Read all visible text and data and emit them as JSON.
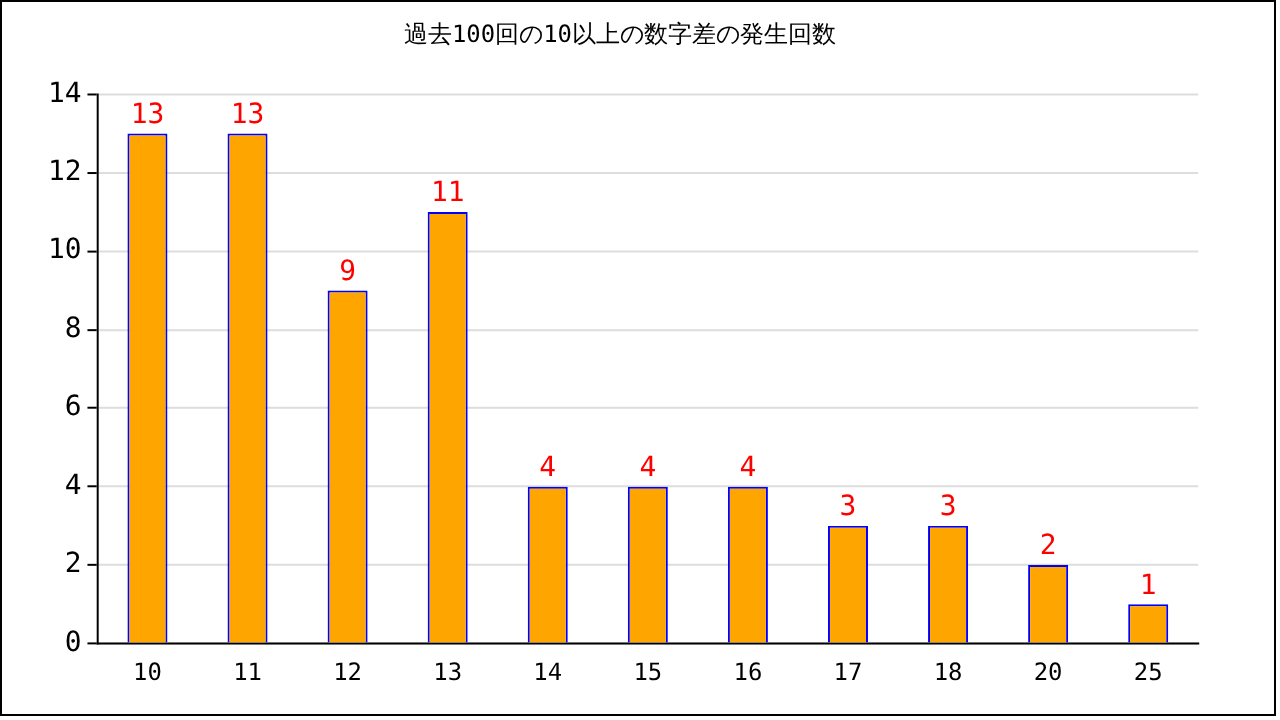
{
  "chart_data": {
    "type": "bar",
    "title": "過去100回の10以上の数字差の発生回数",
    "categories": [
      "10",
      "11",
      "12",
      "13",
      "14",
      "15",
      "16",
      "17",
      "18",
      "20",
      "25"
    ],
    "values": [
      13,
      13,
      9,
      11,
      4,
      4,
      4,
      3,
      3,
      2,
      1
    ],
    "color": "#ffa500",
    "ylim": [
      0,
      14
    ],
    "yticks": [
      0,
      2,
      4,
      6,
      8,
      10,
      12,
      14
    ],
    "grid": "y",
    "data_labels": true
  }
}
